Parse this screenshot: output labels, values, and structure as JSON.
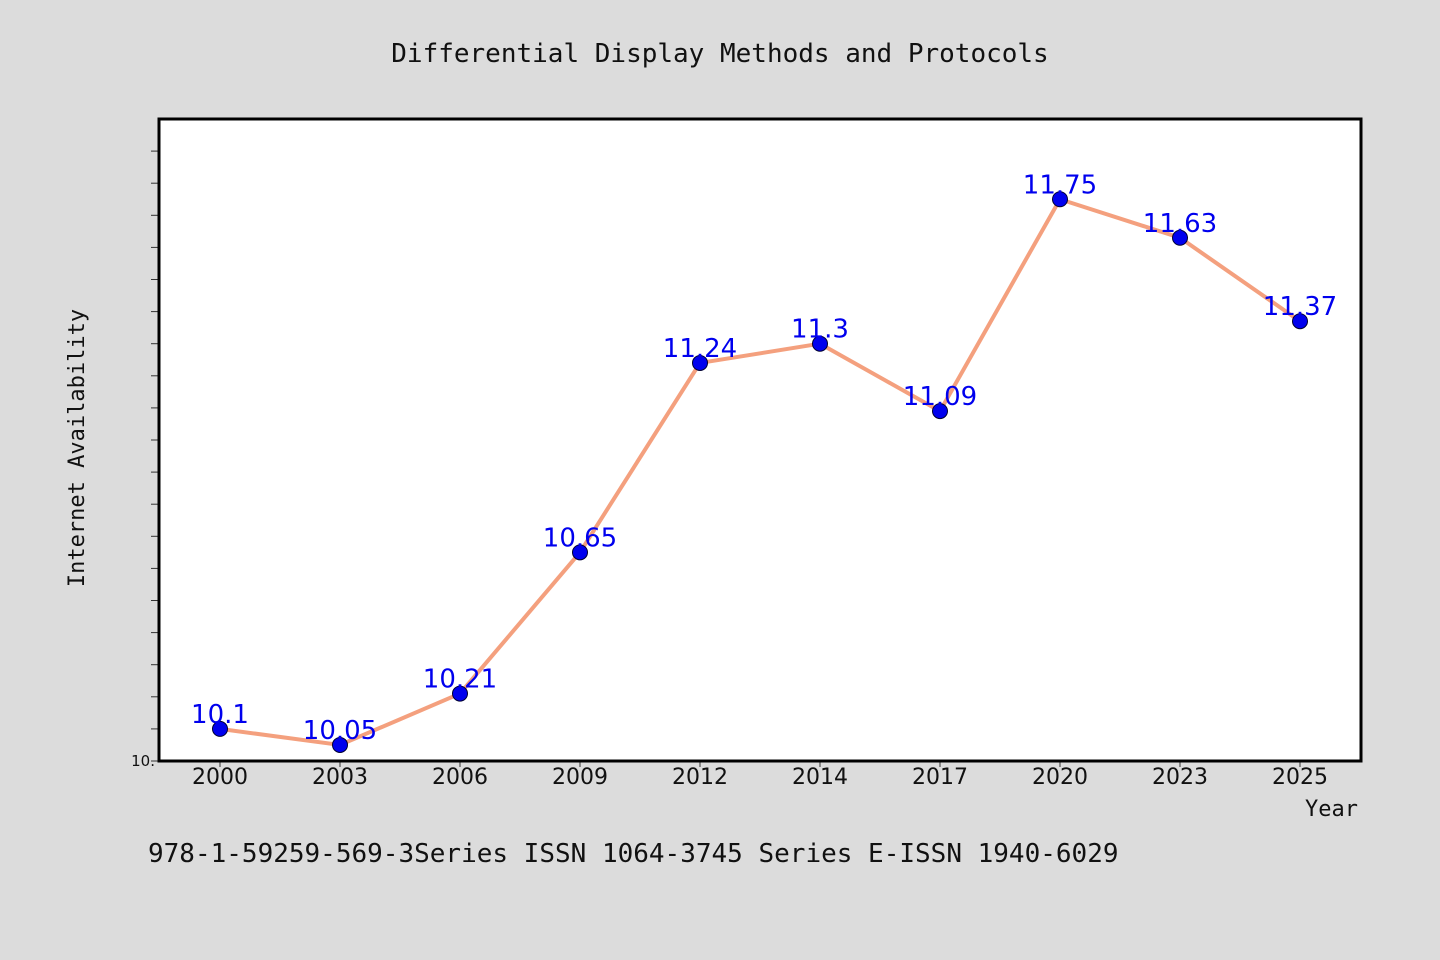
{
  "chart_data": {
    "type": "line",
    "title": "Differential Display Methods and Protocols",
    "xlabel": "Year",
    "ylabel": "Internet Availability",
    "categories": [
      "2000",
      "2003",
      "2006",
      "2009",
      "2012",
      "2014",
      "2017",
      "2020",
      "2023",
      "2025"
    ],
    "series": [
      {
        "values": [
          10.1,
          10.05,
          10.21,
          10.65,
          11.24,
          11.3,
          11.09,
          11.75,
          11.63,
          11.37
        ],
        "labels": [
          "10.1",
          "10.05",
          "10.21",
          "10.65",
          "11.24",
          "11.3",
          "11.09",
          "11.75",
          "11.63",
          "11.37"
        ]
      }
    ],
    "ylim": [
      10.0,
      12.0
    ],
    "yticks": [
      10.0,
      10.1,
      10.2,
      10.3,
      10.4,
      10.5,
      10.6,
      10.7,
      10.8,
      10.9,
      11.0,
      11.1,
      11.2,
      11.3,
      11.4,
      11.5,
      11.6,
      11.7,
      11.8,
      11.9
    ],
    "ytick_label_bottom": "10.",
    "grid": false,
    "colors": {
      "line": "#f4a07e",
      "marker": "#0000ee",
      "label": "#0000ee",
      "plot_bg": "#ffffff",
      "page_bg": "#dcdcdc"
    }
  },
  "footer": {
    "text": "978-1-59259-569-3Series ISSN 1064-3745 Series E-ISSN 1940-6029"
  }
}
